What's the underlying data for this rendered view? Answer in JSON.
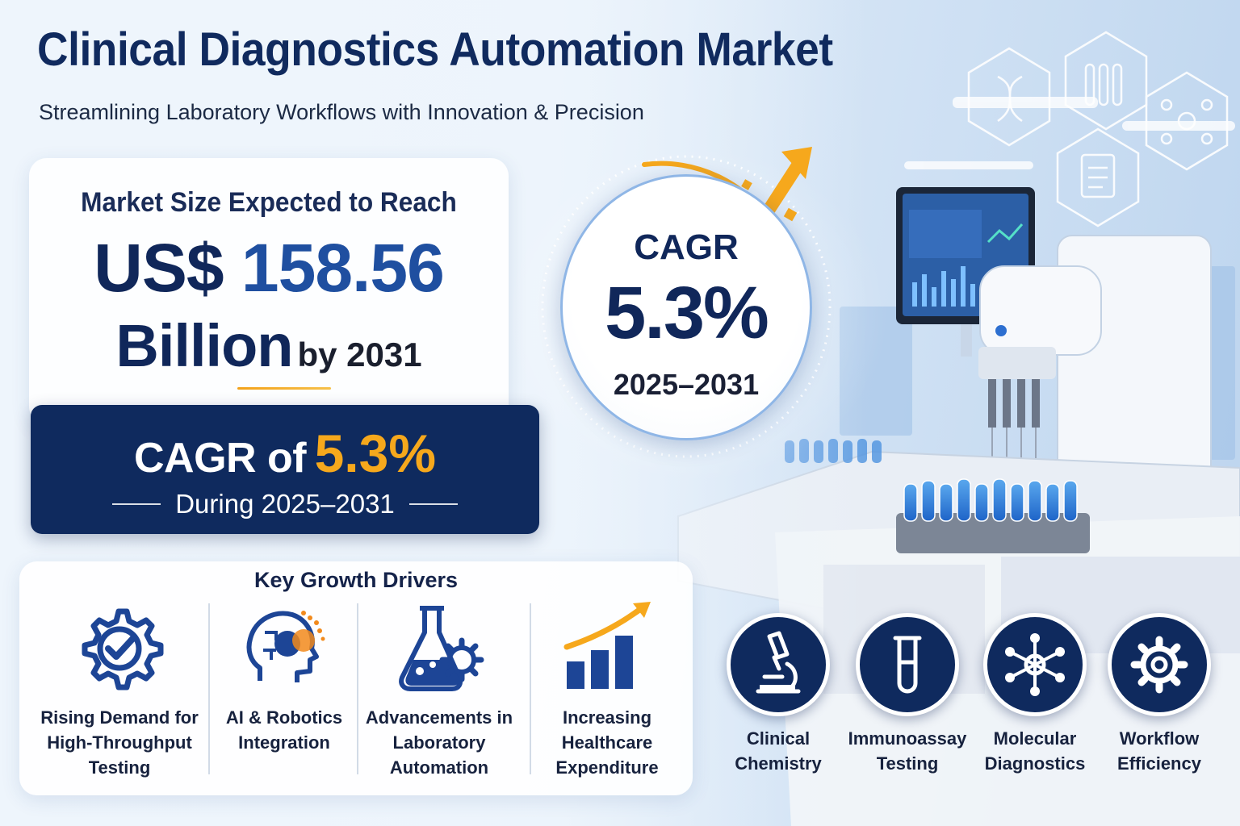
{
  "header": {
    "title": "Clinical Diagnostics Automation Market",
    "subtitle": "Streamlining Laboratory Workflows with Innovation & Precision"
  },
  "market_size": {
    "heading": "Market Size Expected to Reach",
    "currency": "US$",
    "amount": "158.56",
    "unit": "Billion",
    "year_text": "by 2031"
  },
  "cagr_banner": {
    "label": "CAGR of",
    "value": "5.3%",
    "period": "During 2025–2031"
  },
  "cagr_circle": {
    "label": "CAGR",
    "value": "5.3%",
    "period": "2025–2031"
  },
  "drivers": {
    "title": "Key Growth Drivers",
    "items": [
      {
        "label": "Rising Demand for\nHigh-Throughput\nTesting",
        "icon": "gear-check-icon"
      },
      {
        "label": "AI & Robotics\nIntegration",
        "icon": "ai-head-icon"
      },
      {
        "label": "Advancements in\nLaboratory\nAutomation",
        "icon": "flask-gear-icon"
      },
      {
        "label": "Increasing\nHealthcare\nExpenditure",
        "icon": "growth-bars-icon"
      }
    ]
  },
  "categories": [
    {
      "label": "Clinical\nChemistry",
      "icon": "microscope-icon"
    },
    {
      "label": "Immunoassay\nTesting",
      "icon": "test-tube-icon"
    },
    {
      "label": "Molecular\nDiagnostics",
      "icon": "molecule-icon"
    },
    {
      "label": "Workflow\nEfficiency",
      "icon": "gear-icon"
    }
  ],
  "colors": {
    "navy": "#0f2a5e",
    "accent_orange": "#f6a81c",
    "blue": "#1f4fa0"
  }
}
